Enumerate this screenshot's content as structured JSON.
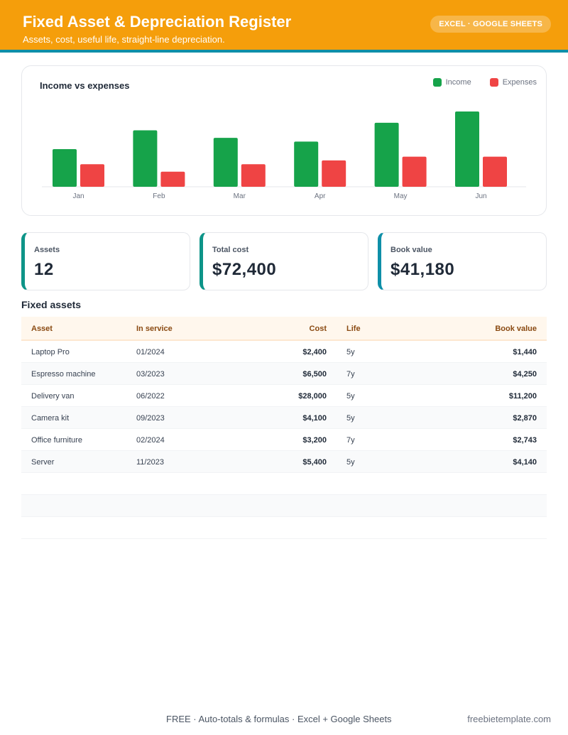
{
  "header": {
    "title": "Fixed Asset & Depreciation Register",
    "subtitle": "Assets, cost, useful life, straight-line depreciation.",
    "badge": "EXCEL · GOOGLE SHEETS"
  },
  "colors": {
    "accent": "#f59e0b",
    "income": "#16a34a",
    "expenses": "#ef4444",
    "teal": "#0d9488",
    "blue": "#0e8fa8"
  },
  "chart_data": {
    "type": "bar",
    "title": "Income vs expenses",
    "categories": [
      "Jan",
      "Feb",
      "Mar",
      "Apr",
      "May",
      "Jun"
    ],
    "series": [
      {
        "name": "Income",
        "values": [
          50,
          75,
          65,
          60,
          85,
          100
        ]
      },
      {
        "name": "Expenses",
        "values": [
          30,
          20,
          30,
          35,
          40,
          40
        ]
      }
    ],
    "ylim": [
      0,
      100
    ],
    "grid": false,
    "legend_position": "top-right",
    "xlabel": "",
    "ylabel": ""
  },
  "kpis": [
    {
      "label": "Assets",
      "value": "12"
    },
    {
      "label": "Total cost",
      "value": "$72,400"
    },
    {
      "label": "Book value",
      "value": "$41,180"
    }
  ],
  "table": {
    "title": "Fixed assets",
    "columns": [
      "Asset",
      "In service",
      "Cost",
      "Life",
      "Book value"
    ],
    "rows": [
      [
        "Laptop Pro",
        "01/2024",
        "$2,400",
        "5y",
        "$1,440"
      ],
      [
        "Espresso machine",
        "03/2023",
        "$6,500",
        "7y",
        "$4,250"
      ],
      [
        "Delivery van",
        "06/2022",
        "$28,000",
        "5y",
        "$11,200"
      ],
      [
        "Camera kit",
        "09/2023",
        "$4,100",
        "5y",
        "$2,870"
      ],
      [
        "Office furniture",
        "02/2024",
        "$3,200",
        "7y",
        "$2,743"
      ],
      [
        "Server",
        "11/2023",
        "$5,400",
        "5y",
        "$4,140"
      ]
    ]
  },
  "footer": {
    "center": "FREE  ·  Auto-totals & formulas  ·  Excel + Google Sheets",
    "right": "freebietemplate.com"
  }
}
